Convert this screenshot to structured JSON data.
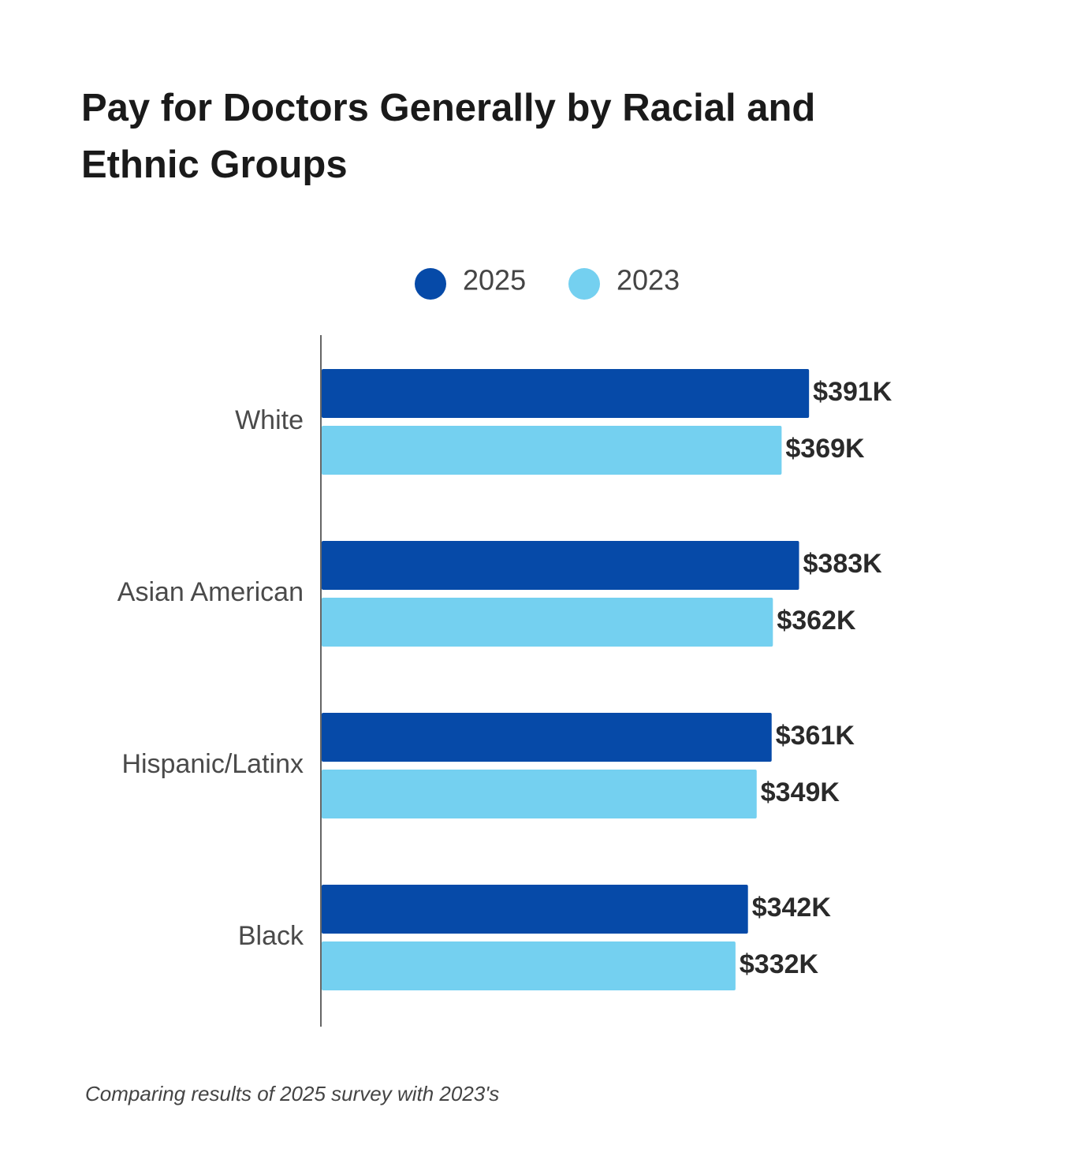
{
  "chart_data": {
    "type": "bar",
    "orientation": "horizontal",
    "title": [
      "Pay for Doctors Generally by Racial and",
      "Ethnic Groups"
    ],
    "categories": [
      "White",
      "Asian American",
      "Hispanic/Latinx",
      "Black"
    ],
    "series": [
      {
        "name": "2025",
        "color": "#064aa8",
        "values": [
          391,
          383,
          361,
          342
        ],
        "value_labels": [
          "$391K",
          "$383K",
          "$361K",
          "$342K"
        ]
      },
      {
        "name": "2023",
        "color": "#74d0f0",
        "values": [
          369,
          362,
          349,
          332
        ],
        "value_labels": [
          "$369K",
          "$362K",
          "$349K",
          "$332K"
        ]
      }
    ],
    "caption": "Comparing results of 2025 survey with 2023's"
  }
}
